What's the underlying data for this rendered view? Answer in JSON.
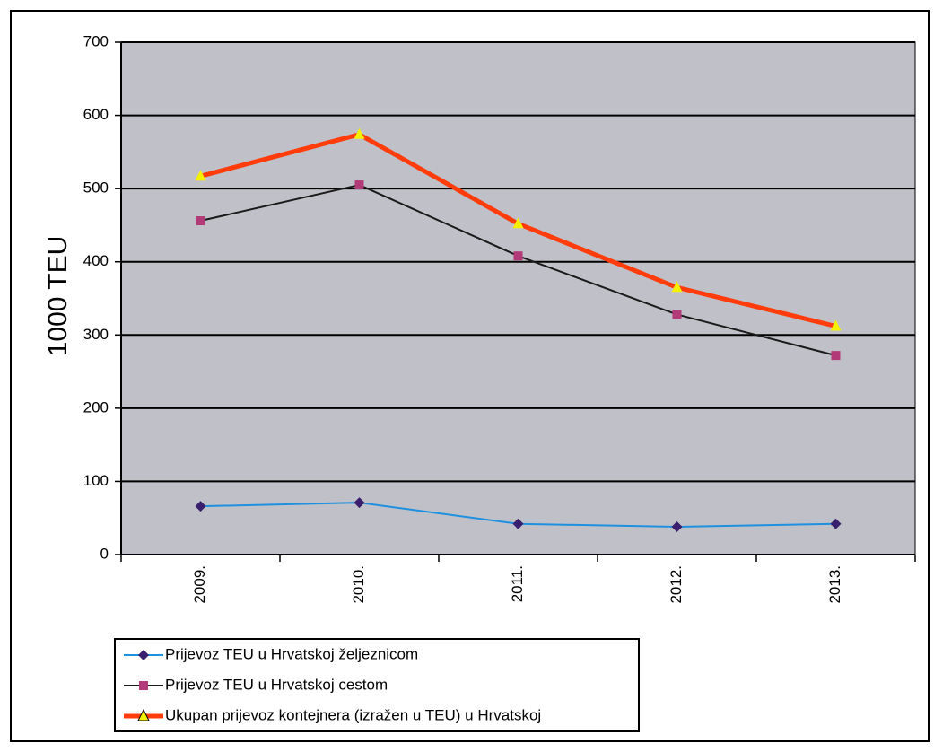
{
  "chart_data": {
    "type": "line",
    "y_label": "1000 TEU",
    "categories": [
      "2009.",
      "2010.",
      "2011.",
      "2012.",
      "2013."
    ],
    "series": [
      {
        "name": "Prijevoz TEU u Hrvatskoj željeznicom",
        "color": "#1e90e0",
        "marker": "diamond",
        "marker_color": "#3a1f6e",
        "width": 2,
        "values": [
          66,
          71,
          42,
          38,
          42
        ]
      },
      {
        "name": "Prijevoz TEU u Hrvatskoj cestom",
        "color": "#1a1a1a",
        "marker": "square",
        "marker_color": "#b23a78",
        "width": 2,
        "values": [
          456,
          505,
          408,
          328,
          272
        ]
      },
      {
        "name": "Ukupan prijevoz kontejnera (izražen u TEU) u Hrvatskoj",
        "color": "#ff3c0a",
        "marker": "triangle",
        "marker_color": "#f4f000",
        "width": 5,
        "values": [
          517,
          574,
          452,
          365,
          312
        ]
      }
    ],
    "ylim": [
      0,
      700
    ],
    "yticks": [
      0,
      100,
      200,
      300,
      400,
      500,
      600,
      700
    ],
    "grid": true,
    "plot_background": "#c0c0c8"
  }
}
